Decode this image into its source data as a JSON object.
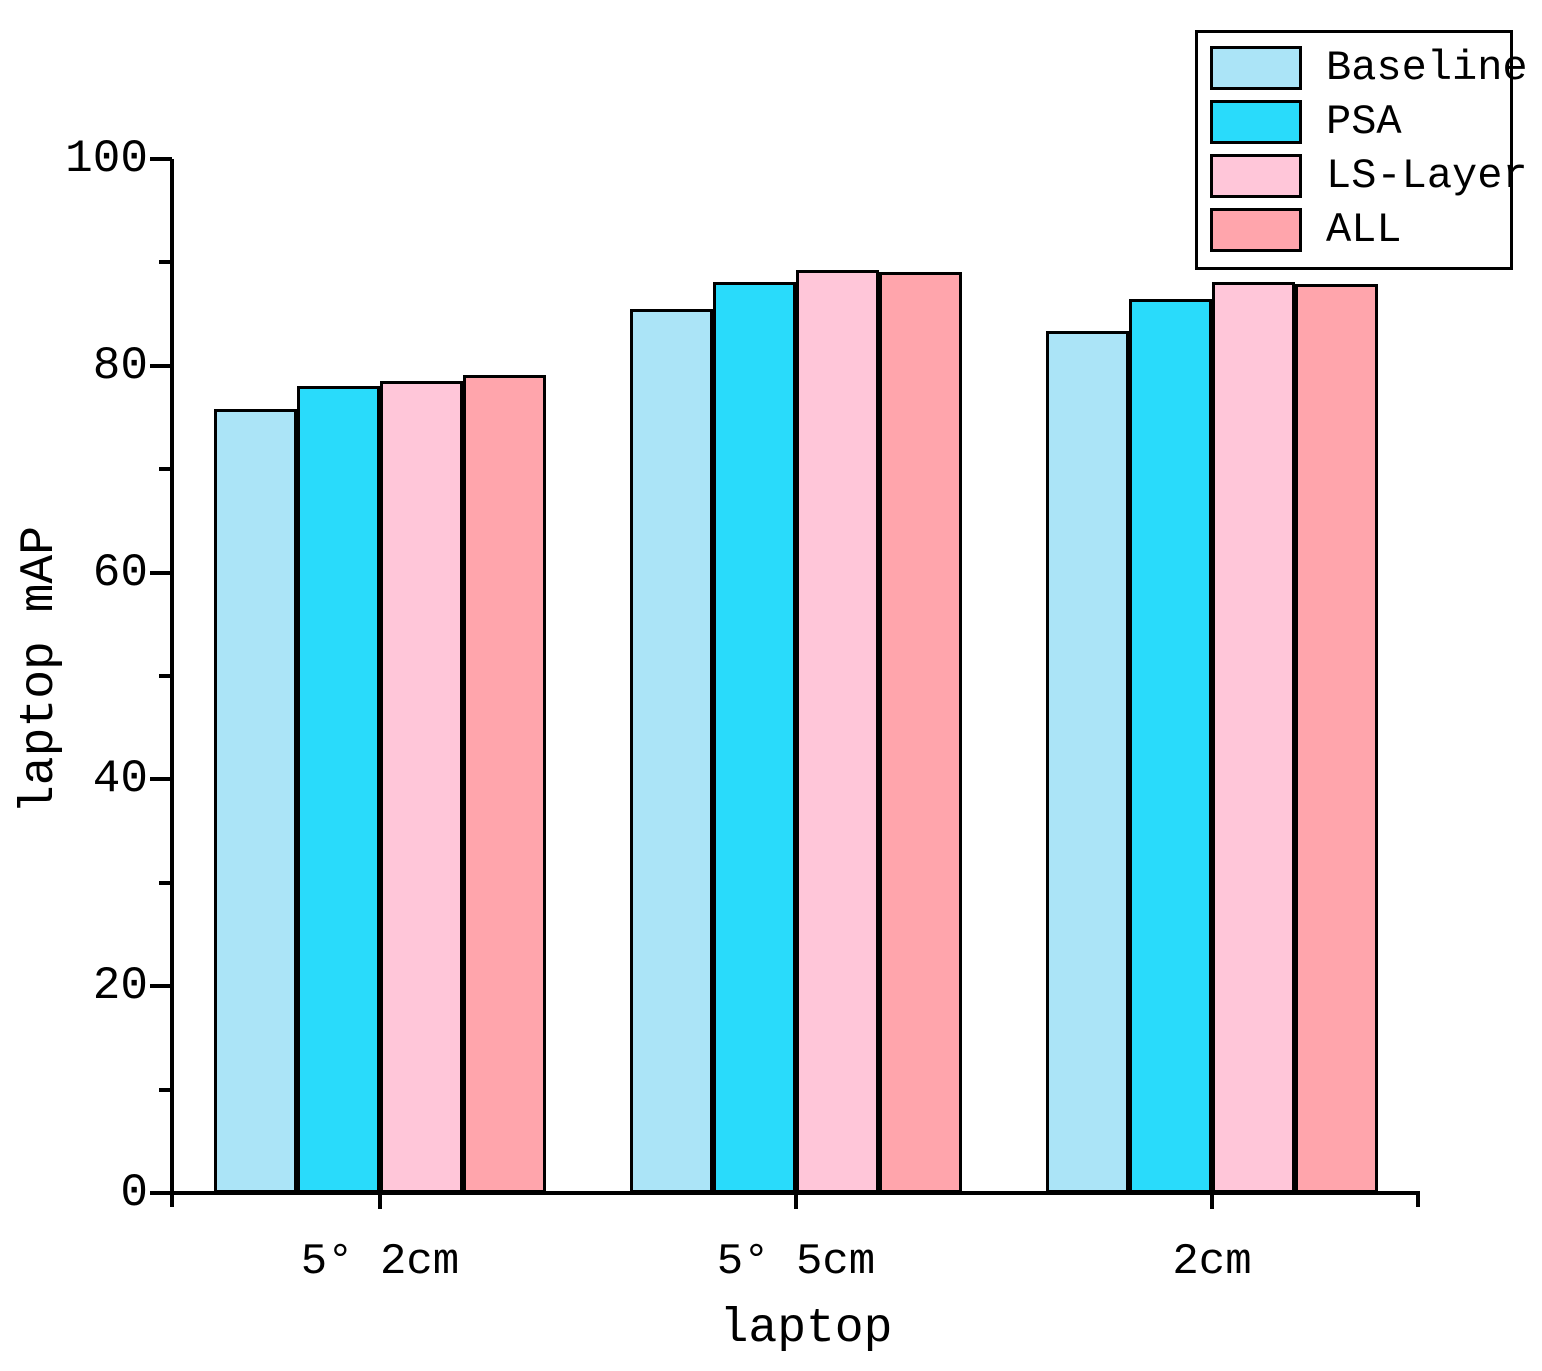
{
  "chart_data": {
    "type": "bar",
    "title": "",
    "xlabel": "laptop",
    "ylabel": "laptop mAP",
    "categories": [
      "5° 2cm",
      "5° 5cm",
      "2cm"
    ],
    "series": [
      {
        "name": "Baseline",
        "color": "#ABE4F7",
        "values": [
          75.8,
          85.5,
          83.4
        ]
      },
      {
        "name": "PSA",
        "color": "#29DBFB",
        "values": [
          78.0,
          88.1,
          86.5
        ]
      },
      {
        "name": "LS-Layer",
        "color": "#FFC6D9",
        "values": [
          78.5,
          89.3,
          88.1
        ]
      },
      {
        "name": "ALL",
        "color": "#FFA5AC",
        "values": [
          79.1,
          89.1,
          87.9
        ]
      }
    ],
    "ylim": [
      0,
      100
    ],
    "yticks_major": [
      0,
      20,
      40,
      60,
      80,
      100
    ],
    "yticks_minor": [
      10,
      30,
      50,
      70,
      90
    ],
    "grid": false,
    "legend_position": "top-right",
    "bar_edge_color": "#000000",
    "axis_color": "#000000"
  }
}
